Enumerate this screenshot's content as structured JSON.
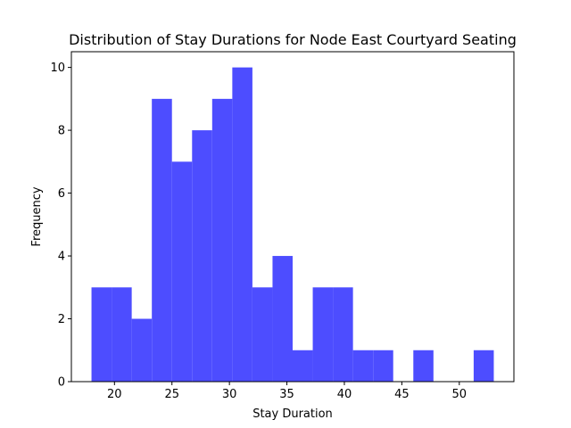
{
  "chart_data": {
    "type": "bar",
    "title": "Distribution of Stay Durations for Node East Courtyard Seating",
    "xlabel": "Stay Duration",
    "ylabel": "Frequency",
    "bins": [
      {
        "x0": 18.0,
        "x1": 19.75,
        "value": 3
      },
      {
        "x0": 19.75,
        "x1": 21.5,
        "value": 3
      },
      {
        "x0": 21.5,
        "x1": 23.25,
        "value": 2
      },
      {
        "x0": 23.25,
        "x1": 25.0,
        "value": 9
      },
      {
        "x0": 25.0,
        "x1": 26.75,
        "value": 7
      },
      {
        "x0": 26.75,
        "x1": 28.5,
        "value": 8
      },
      {
        "x0": 28.5,
        "x1": 30.25,
        "value": 9
      },
      {
        "x0": 30.25,
        "x1": 32.0,
        "value": 10
      },
      {
        "x0": 32.0,
        "x1": 33.75,
        "value": 3
      },
      {
        "x0": 33.75,
        "x1": 35.5,
        "value": 4
      },
      {
        "x0": 35.5,
        "x1": 37.25,
        "value": 1
      },
      {
        "x0": 37.25,
        "x1": 39.0,
        "value": 3
      },
      {
        "x0": 39.0,
        "x1": 40.75,
        "value": 3
      },
      {
        "x0": 40.75,
        "x1": 42.5,
        "value": 1
      },
      {
        "x0": 42.5,
        "x1": 44.25,
        "value": 1
      },
      {
        "x0": 44.25,
        "x1": 46.0,
        "value": 0
      },
      {
        "x0": 46.0,
        "x1": 47.75,
        "value": 1
      },
      {
        "x0": 47.75,
        "x1": 49.5,
        "value": 0
      },
      {
        "x0": 49.5,
        "x1": 51.25,
        "value": 0
      },
      {
        "x0": 51.25,
        "x1": 53.0,
        "value": 1
      }
    ],
    "xlim": [
      16.25,
      54.75
    ],
    "ylim": [
      0,
      10.5
    ],
    "xticks": [
      20,
      25,
      30,
      35,
      40,
      45,
      50
    ],
    "yticks": [
      0,
      2,
      4,
      6,
      8,
      10
    ],
    "bar_color": "#4d4dff",
    "grid": false,
    "legend": "none"
  }
}
